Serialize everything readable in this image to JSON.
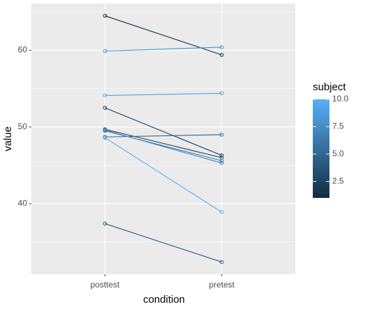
{
  "chart_data": {
    "type": "line",
    "x_label": "condition",
    "y_label": "value",
    "categories": [
      "posttest",
      "pretest"
    ],
    "series": [
      {
        "subject": 1,
        "values": [
          64.5,
          59.4
        ]
      },
      {
        "subject": 2,
        "values": [
          52.5,
          46.3
        ]
      },
      {
        "subject": 3,
        "values": [
          49.7,
          46.0
        ]
      },
      {
        "subject": 4,
        "values": [
          37.4,
          32.4
        ]
      },
      {
        "subject": 5,
        "values": [
          48.7,
          49.0
        ]
      },
      {
        "subject": 6,
        "values": [
          49.5,
          45.6
        ]
      },
      {
        "subject": 7,
        "values": [
          49.6,
          45.3
        ]
      },
      {
        "subject": 8,
        "values": [
          59.9,
          60.4
        ]
      },
      {
        "subject": 9,
        "values": [
          54.1,
          54.4
        ]
      },
      {
        "subject": 10,
        "values": [
          48.6,
          38.9
        ]
      }
    ],
    "ylim": [
      30.8,
      66.1
    ],
    "yticks": [
      40,
      50,
      60
    ],
    "y_minor_grid": [
      35,
      45,
      55,
      65
    ],
    "grid": true,
    "legend": {
      "title": "subject",
      "low_color": "#132B43",
      "high_color": "#56B1F7",
      "lim": [
        1,
        10
      ],
      "ticks": [
        {
          "value": 2.5,
          "label": "2.5"
        },
        {
          "value": 5,
          "label": "5.0"
        },
        {
          "value": 7.5,
          "label": "7.5"
        },
        {
          "value": 10,
          "label": "10.0"
        }
      ]
    }
  }
}
